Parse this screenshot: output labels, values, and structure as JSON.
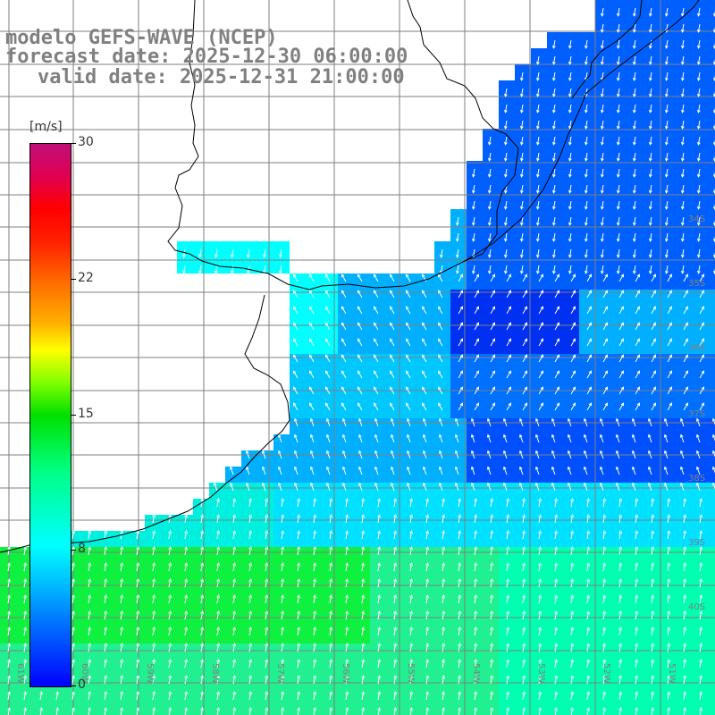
{
  "title": {
    "line1": "modelo GEFS-WAVE (NCEP)",
    "line2": "forecast date: 2025-12-30 06:00:00",
    "line3": "valid date: 2025-12-31 21:00:00"
  },
  "colorbar": {
    "unit": "[m/s]",
    "min": 0,
    "max": 30,
    "ticks": [
      "30",
      "22",
      "15",
      "8",
      "0"
    ],
    "tick_values": [
      30,
      22,
      15,
      8,
      0
    ],
    "colors": [
      "#0000ff",
      "#0080ff",
      "#00ffff",
      "#00e000",
      "#ffff00",
      "#ff7000",
      "#ff0000",
      "#c0107a"
    ]
  },
  "lat_labels": [
    "34S",
    "35S",
    "36S",
    "37S",
    "38S",
    "39S",
    "40S"
  ],
  "lon_labels": [
    "61W",
    "60W",
    "59W",
    "58W",
    "57W",
    "56W",
    "55W",
    "54W",
    "53W",
    "52W",
    "51W"
  ],
  "palette": {
    "land": "#ffffff",
    "coastline": "#000000",
    "grid": "#7f7f7f",
    "arrow": "#ffffff",
    "label_gray": "#808080"
  }
}
